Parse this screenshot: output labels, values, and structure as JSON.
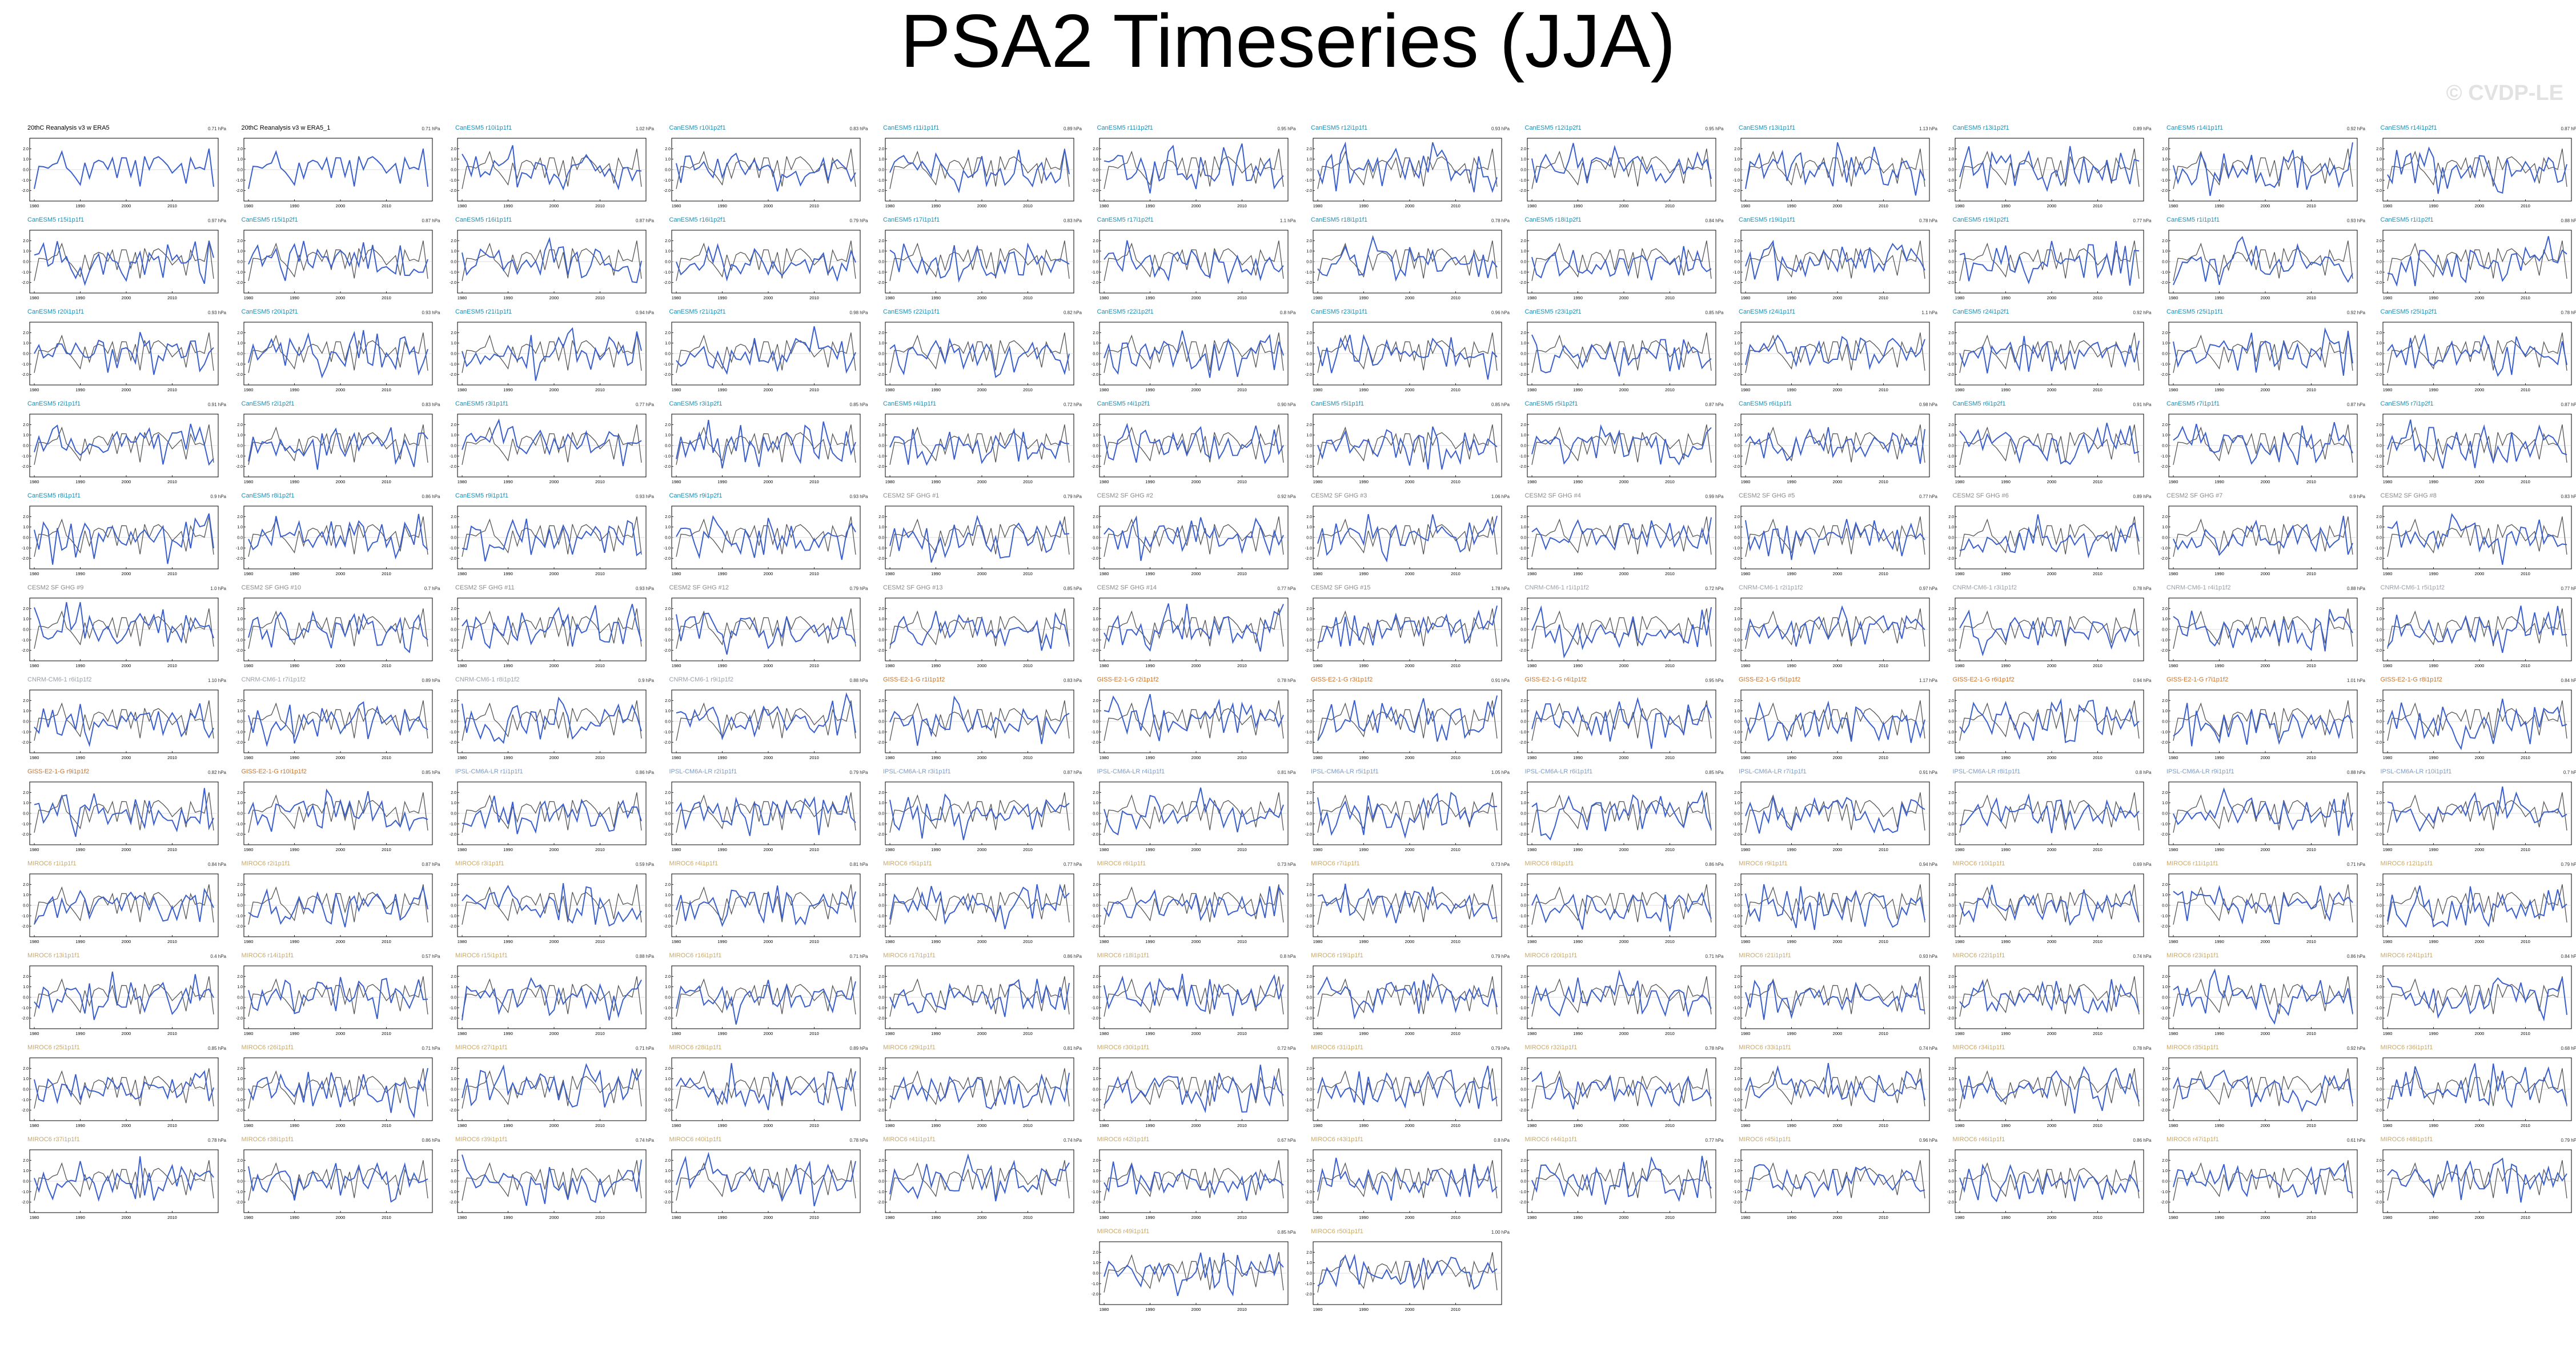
{
  "title": "PSA2 Timeseries (JJA)",
  "watermark": "© CVDP-LE",
  "colors": {
    "observed_line": "#555555",
    "model_line": "#3a5fcd",
    "title_obs": "#000000",
    "title_canesm5": "#1b8fb5",
    "title_cesm2": "#8a8a8a",
    "title_cnrm": "#9aa0a8",
    "title_giss": "#c9722a",
    "title_ipsl": "#7b9bc9",
    "title_miroc": "#c8a86a"
  },
  "chart_data": {
    "type": "line",
    "layout": "small-multiples",
    "xlim": [
      1979,
      2020
    ],
    "xticks": [
      "1980",
      "1990",
      "2000",
      "2010"
    ],
    "ylim": [
      -3,
      3
    ],
    "yticks": [
      "2.0",
      "1.0",
      "0.0",
      "-1.0",
      "-2.0"
    ],
    "grid": false,
    "legend": "none",
    "panels": [
      {
        "title": "20thC Reanalysis v3 w ERA5",
        "stat": "0.71 hPa",
        "color": "title_obs"
      },
      {
        "title": "20thC Reanalysis v3 w ERA5_1",
        "stat": "0.71 hPa",
        "color": "title_obs"
      },
      {
        "title": "CanESM5 r10i1p1f1",
        "stat": "1.02 hPa",
        "color": "title_canesm5"
      },
      {
        "title": "CanESM5 r10i1p2f1",
        "stat": "0.83 hPa",
        "color": "title_canesm5"
      },
      {
        "title": "CanESM5 r11i1p1f1",
        "stat": "0.89 hPa",
        "color": "title_canesm5"
      },
      {
        "title": "CanESM5 r11i1p2f1",
        "stat": "0.95 hPa",
        "color": "title_canesm5"
      },
      {
        "title": "CanESM5 r12i1p1f1",
        "stat": "0.93 hPa",
        "color": "title_canesm5"
      },
      {
        "title": "CanESM5 r12i1p2f1",
        "stat": "0.95 hPa",
        "color": "title_canesm5"
      },
      {
        "title": "CanESM5 r13i1p1f1",
        "stat": "1.13 hPa",
        "color": "title_canesm5"
      },
      {
        "title": "CanESM5 r13i1p2f1",
        "stat": "0.89 hPa",
        "color": "title_canesm5"
      },
      {
        "title": "CanESM5 r14i1p1f1",
        "stat": "0.92 hPa",
        "color": "title_canesm5"
      },
      {
        "title": "CanESM5 r14i1p2f1",
        "stat": "0.87 hPa",
        "color": "title_canesm5"
      },
      {
        "title": "CanESM5 r15i1p1f1",
        "stat": "0.97 hPa",
        "color": "title_canesm5"
      },
      {
        "title": "CanESM5 r15i1p2f1",
        "stat": "0.87 hPa",
        "color": "title_canesm5"
      },
      {
        "title": "CanESM5 r16i1p1f1",
        "stat": "0.87 hPa",
        "color": "title_canesm5"
      },
      {
        "title": "CanESM5 r16i1p2f1",
        "stat": "0.79 hPa",
        "color": "title_canesm5"
      },
      {
        "title": "CanESM5 r17i1p1f1",
        "stat": "0.83 hPa",
        "color": "title_canesm5"
      },
      {
        "title": "CanESM5 r17i1p2f1",
        "stat": "1.1 hPa",
        "color": "title_canesm5"
      },
      {
        "title": "CanESM5 r18i1p1f1",
        "stat": "0.78 hPa",
        "color": "title_canesm5"
      },
      {
        "title": "CanESM5 r18i1p2f1",
        "stat": "0.84 hPa",
        "color": "title_canesm5"
      },
      {
        "title": "CanESM5 r19i1p1f1",
        "stat": "0.78 hPa",
        "color": "title_canesm5"
      },
      {
        "title": "CanESM5 r19i1p2f1",
        "stat": "0.77 hPa",
        "color": "title_canesm5"
      },
      {
        "title": "CanESM5 r1i1p1f1",
        "stat": "0.93 hPa",
        "color": "title_canesm5"
      },
      {
        "title": "CanESM5 r1i1p2f1",
        "stat": "0.88 hPa",
        "color": "title_canesm5"
      },
      {
        "title": "CanESM5 r20i1p1f1",
        "stat": "0.93 hPa",
        "color": "title_canesm5"
      },
      {
        "title": "CanESM5 r20i1p2f1",
        "stat": "0.93 hPa",
        "color": "title_canesm5"
      },
      {
        "title": "CanESM5 r21i1p1f1",
        "stat": "0.94 hPa",
        "color": "title_canesm5"
      },
      {
        "title": "CanESM5 r21i1p2f1",
        "stat": "0.98 hPa",
        "color": "title_canesm5"
      },
      {
        "title": "CanESM5 r22i1p1f1",
        "stat": "0.82 hPa",
        "color": "title_canesm5"
      },
      {
        "title": "CanESM5 r22i1p2f1",
        "stat": "0.8 hPa",
        "color": "title_canesm5"
      },
      {
        "title": "CanESM5 r23i1p1f1",
        "stat": "0.96 hPa",
        "color": "title_canesm5"
      },
      {
        "title": "CanESM5 r23i1p2f1",
        "stat": "0.85 hPa",
        "color": "title_canesm5"
      },
      {
        "title": "CanESM5 r24i1p1f1",
        "stat": "1.1 hPa",
        "color": "title_canesm5"
      },
      {
        "title": "CanESM5 r24i1p2f1",
        "stat": "0.92 hPa",
        "color": "title_canesm5"
      },
      {
        "title": "CanESM5 r25i1p1f1",
        "stat": "0.92 hPa",
        "color": "title_canesm5"
      },
      {
        "title": "CanESM5 r25i1p2f1",
        "stat": "0.78 hPa",
        "color": "title_canesm5"
      },
      {
        "title": "CanESM5 r2i1p1f1",
        "stat": "0.91 hPa",
        "color": "title_canesm5"
      },
      {
        "title": "CanESM5 r2i1p2f1",
        "stat": "0.83 hPa",
        "color": "title_canesm5"
      },
      {
        "title": "CanESM5 r3i1p1f1",
        "stat": "0.77 hPa",
        "color": "title_canesm5"
      },
      {
        "title": "CanESM5 r3i1p2f1",
        "stat": "0.85 hPa",
        "color": "title_canesm5"
      },
      {
        "title": "CanESM5 r4i1p1f1",
        "stat": "0.72 hPa",
        "color": "title_canesm5"
      },
      {
        "title": "CanESM5 r4i1p2f1",
        "stat": "0.90 hPa",
        "color": "title_canesm5"
      },
      {
        "title": "CanESM5 r5i1p1f1",
        "stat": "0.85 hPa",
        "color": "title_canesm5"
      },
      {
        "title": "CanESM5 r5i1p2f1",
        "stat": "0.87 hPa",
        "color": "title_canesm5"
      },
      {
        "title": "CanESM5 r6i1p1f1",
        "stat": "0.98 hPa",
        "color": "title_canesm5"
      },
      {
        "title": "CanESM5 r6i1p2f1",
        "stat": "0.91 hPa",
        "color": "title_canesm5"
      },
      {
        "title": "CanESM5 r7i1p1f1",
        "stat": "0.87 hPa",
        "color": "title_canesm5"
      },
      {
        "title": "CanESM5 r7i1p2f1",
        "stat": "0.87 hPa",
        "color": "title_canesm5"
      },
      {
        "title": "CanESM5 r8i1p1f1",
        "stat": "0.9 hPa",
        "color": "title_canesm5"
      },
      {
        "title": "CanESM5 r8i1p2f1",
        "stat": "0.86 hPa",
        "color": "title_canesm5"
      },
      {
        "title": "CanESM5 r9i1p1f1",
        "stat": "0.93 hPa",
        "color": "title_canesm5"
      },
      {
        "title": "CanESM5 r9i1p2f1",
        "stat": "0.93 hPa",
        "color": "title_canesm5"
      },
      {
        "title": "CESM2 SF GHG #1",
        "stat": "0.79 hPa",
        "color": "title_cesm2"
      },
      {
        "title": "CESM2 SF GHG #2",
        "stat": "0.92 hPa",
        "color": "title_cesm2"
      },
      {
        "title": "CESM2 SF GHG #3",
        "stat": "1.06 hPa",
        "color": "title_cesm2"
      },
      {
        "title": "CESM2 SF GHG #4",
        "stat": "0.99 hPa",
        "color": "title_cesm2"
      },
      {
        "title": "CESM2 SF GHG #5",
        "stat": "0.77 hPa",
        "color": "title_cesm2"
      },
      {
        "title": "CESM2 SF GHG #6",
        "stat": "0.89 hPa",
        "color": "title_cesm2"
      },
      {
        "title": "CESM2 SF GHG #7",
        "stat": "0.9 hPa",
        "color": "title_cesm2"
      },
      {
        "title": "CESM2 SF GHG #8",
        "stat": "0.83 hPa",
        "color": "title_cesm2"
      },
      {
        "title": "CESM2 SF GHG #9",
        "stat": "1.0 hPa",
        "color": "title_cesm2"
      },
      {
        "title": "CESM2 SF GHG #10",
        "stat": "0.7 hPa",
        "color": "title_cesm2"
      },
      {
        "title": "CESM2 SF GHG #11",
        "stat": "0.93 hPa",
        "color": "title_cesm2"
      },
      {
        "title": "CESM2 SF GHG #12",
        "stat": "0.79 hPa",
        "color": "title_cesm2"
      },
      {
        "title": "CESM2 SF GHG #13",
        "stat": "0.85 hPa",
        "color": "title_cesm2"
      },
      {
        "title": "CESM2 SF GHG #14",
        "stat": "0.77 hPa",
        "color": "title_cesm2"
      },
      {
        "title": "CESM2 SF GHG #15",
        "stat": "1.78 hPa",
        "color": "title_cesm2"
      },
      {
        "title": "CNRM-CM6-1 r1i1p1f2",
        "stat": "0.72 hPa",
        "color": "title_cnrm"
      },
      {
        "title": "CNRM-CM6-1 r2i1p1f2",
        "stat": "0.97 hPa",
        "color": "title_cnrm"
      },
      {
        "title": "CNRM-CM6-1 r3i1p1f2",
        "stat": "0.78 hPa",
        "color": "title_cnrm"
      },
      {
        "title": "CNRM-CM6-1 r4i1p1f2",
        "stat": "0.88 hPa",
        "color": "title_cnrm"
      },
      {
        "title": "CNRM-CM6-1 r5i1p1f2",
        "stat": "0.77 hPa",
        "color": "title_cnrm"
      },
      {
        "title": "CNRM-CM6-1 r6i1p1f2",
        "stat": "1.10 hPa",
        "color": "title_cnrm"
      },
      {
        "title": "CNRM-CM6-1 r7i1p1f2",
        "stat": "0.89 hPa",
        "color": "title_cnrm"
      },
      {
        "title": "CNRM-CM6-1 r8i1p1f2",
        "stat": "0.9 hPa",
        "color": "title_cnrm"
      },
      {
        "title": "CNRM-CM6-1 r9i1p1f2",
        "stat": "0.88 hPa",
        "color": "title_cnrm"
      },
      {
        "title": "GISS-E2-1-G r1i1p1f2",
        "stat": "0.83 hPa",
        "color": "title_giss"
      },
      {
        "title": "GISS-E2-1-G r2i1p1f2",
        "stat": "0.78 hPa",
        "color": "title_giss"
      },
      {
        "title": "GISS-E2-1-G r3i1p1f2",
        "stat": "0.91 hPa",
        "color": "title_giss"
      },
      {
        "title": "GISS-E2-1-G r4i1p1f2",
        "stat": "0.95 hPa",
        "color": "title_giss"
      },
      {
        "title": "GISS-E2-1-G r5i1p1f2",
        "stat": "1.17 hPa",
        "color": "title_giss"
      },
      {
        "title": "GISS-E2-1-G r6i1p1f2",
        "stat": "0.94 hPa",
        "color": "title_giss"
      },
      {
        "title": "GISS-E2-1-G r7i1p1f2",
        "stat": "1.01 hPa",
        "color": "title_giss"
      },
      {
        "title": "GISS-E2-1-G r8i1p1f2",
        "stat": "0.84 hPa",
        "color": "title_giss"
      },
      {
        "title": "GISS-E2-1-G r9i1p1f2",
        "stat": "0.82 hPa",
        "color": "title_giss"
      },
      {
        "title": "GISS-E2-1-G r10i1p1f2",
        "stat": "0.85 hPa",
        "color": "title_giss"
      },
      {
        "title": "IPSL-CM6A-LR r1i1p1f1",
        "stat": "0.86 hPa",
        "color": "title_ipsl"
      },
      {
        "title": "IPSL-CM6A-LR r2i1p1f1",
        "stat": "0.79 hPa",
        "color": "title_ipsl"
      },
      {
        "title": "IPSL-CM6A-LR r3i1p1f1",
        "stat": "0.87 hPa",
        "color": "title_ipsl"
      },
      {
        "title": "IPSL-CM6A-LR r4i1p1f1",
        "stat": "0.81 hPa",
        "color": "title_ipsl"
      },
      {
        "title": "IPSL-CM6A-LR r5i1p1f1",
        "stat": "1.05 hPa",
        "color": "title_ipsl"
      },
      {
        "title": "IPSL-CM6A-LR r6i1p1f1",
        "stat": "0.85 hPa",
        "color": "title_ipsl"
      },
      {
        "title": "IPSL-CM6A-LR r7i1p1f1",
        "stat": "0.91 hPa",
        "color": "title_ipsl"
      },
      {
        "title": "IPSL-CM6A-LR r8i1p1f1",
        "stat": "0.8 hPa",
        "color": "title_ipsl"
      },
      {
        "title": "IPSL-CM6A-LR r9i1p1f1",
        "stat": "0.88 hPa",
        "color": "title_ipsl"
      },
      {
        "title": "IPSL-CM6A-LR r10i1p1f1",
        "stat": "0.7 hPa",
        "color": "title_ipsl"
      },
      {
        "title": "MIROC6 r1i1p1f1",
        "stat": "0.84 hPa",
        "color": "title_miroc"
      },
      {
        "title": "MIROC6 r2i1p1f1",
        "stat": "0.87 hPa",
        "color": "title_miroc"
      },
      {
        "title": "MIROC6 r3i1p1f1",
        "stat": "0.59 hPa",
        "color": "title_miroc"
      },
      {
        "title": "MIROC6 r4i1p1f1",
        "stat": "0.81 hPa",
        "color": "title_miroc"
      },
      {
        "title": "MIROC6 r5i1p1f1",
        "stat": "0.77 hPa",
        "color": "title_miroc"
      },
      {
        "title": "MIROC6 r6i1p1f1",
        "stat": "0.73 hPa",
        "color": "title_miroc"
      },
      {
        "title": "MIROC6 r7i1p1f1",
        "stat": "0.73 hPa",
        "color": "title_miroc"
      },
      {
        "title": "MIROC6 r8i1p1f1",
        "stat": "0.86 hPa",
        "color": "title_miroc"
      },
      {
        "title": "MIROC6 r9i1p1f1",
        "stat": "0.94 hPa",
        "color": "title_miroc"
      },
      {
        "title": "MIROC6 r10i1p1f1",
        "stat": "0.69 hPa",
        "color": "title_miroc"
      },
      {
        "title": "MIROC6 r11i1p1f1",
        "stat": "0.71 hPa",
        "color": "title_miroc"
      },
      {
        "title": "MIROC6 r12i1p1f1",
        "stat": "0.79 hPa",
        "color": "title_miroc"
      },
      {
        "title": "MIROC6 r13i1p1f1",
        "stat": "0.4 hPa",
        "color": "title_miroc"
      },
      {
        "title": "MIROC6 r14i1p1f1",
        "stat": "0.57 hPa",
        "color": "title_miroc"
      },
      {
        "title": "MIROC6 r15i1p1f1",
        "stat": "0.88 hPa",
        "color": "title_miroc"
      },
      {
        "title": "MIROC6 r16i1p1f1",
        "stat": "0.71 hPa",
        "color": "title_miroc"
      },
      {
        "title": "MIROC6 r17i1p1f1",
        "stat": "0.86 hPa",
        "color": "title_miroc"
      },
      {
        "title": "MIROC6 r18i1p1f1",
        "stat": "0.8 hPa",
        "color": "title_miroc"
      },
      {
        "title": "MIROC6 r19i1p1f1",
        "stat": "0.79 hPa",
        "color": "title_miroc"
      },
      {
        "title": "MIROC6 r20i1p1f1",
        "stat": "0.71 hPa",
        "color": "title_miroc"
      },
      {
        "title": "MIROC6 r21i1p1f1",
        "stat": "0.93 hPa",
        "color": "title_miroc"
      },
      {
        "title": "MIROC6 r22i1p1f1",
        "stat": "0.74 hPa",
        "color": "title_miroc"
      },
      {
        "title": "MIROC6 r23i1p1f1",
        "stat": "0.86 hPa",
        "color": "title_miroc"
      },
      {
        "title": "MIROC6 r24i1p1f1",
        "stat": "0.84 hPa",
        "color": "title_miroc"
      },
      {
        "title": "MIROC6 r25i1p1f1",
        "stat": "0.85 hPa",
        "color": "title_miroc"
      },
      {
        "title": "MIROC6 r26i1p1f1",
        "stat": "0.71 hPa",
        "color": "title_miroc"
      },
      {
        "title": "MIROC6 r27i1p1f1",
        "stat": "0.71 hPa",
        "color": "title_miroc"
      },
      {
        "title": "MIROC6 r28i1p1f1",
        "stat": "0.89 hPa",
        "color": "title_miroc"
      },
      {
        "title": "MIROC6 r29i1p1f1",
        "stat": "0.81 hPa",
        "color": "title_miroc"
      },
      {
        "title": "MIROC6 r30i1p1f1",
        "stat": "0.72 hPa",
        "color": "title_miroc"
      },
      {
        "title": "MIROC6 r31i1p1f1",
        "stat": "0.79 hPa",
        "color": "title_miroc"
      },
      {
        "title": "MIROC6 r32i1p1f1",
        "stat": "0.78 hPa",
        "color": "title_miroc"
      },
      {
        "title": "MIROC6 r33i1p1f1",
        "stat": "0.74 hPa",
        "color": "title_miroc"
      },
      {
        "title": "MIROC6 r34i1p1f1",
        "stat": "0.78 hPa",
        "color": "title_miroc"
      },
      {
        "title": "MIROC6 r35i1p1f1",
        "stat": "0.92 hPa",
        "color": "title_miroc"
      },
      {
        "title": "MIROC6 r36i1p1f1",
        "stat": "0.68 hPa",
        "color": "title_miroc"
      },
      {
        "title": "MIROC6 r37i1p1f1",
        "stat": "0.78 hPa",
        "color": "title_miroc"
      },
      {
        "title": "MIROC6 r38i1p1f1",
        "stat": "0.86 hPa",
        "color": "title_miroc"
      },
      {
        "title": "MIROC6 r39i1p1f1",
        "stat": "0.74 hPa",
        "color": "title_miroc"
      },
      {
        "title": "MIROC6 r40i1p1f1",
        "stat": "0.78 hPa",
        "color": "title_miroc"
      },
      {
        "title": "MIROC6 r41i1p1f1",
        "stat": "0.74 hPa",
        "color": "title_miroc"
      },
      {
        "title": "MIROC6 r42i1p1f1",
        "stat": "0.67 hPa",
        "color": "title_miroc"
      },
      {
        "title": "MIROC6 r43i1p1f1",
        "stat": "0.8 hPa",
        "color": "title_miroc"
      },
      {
        "title": "MIROC6 r44i1p1f1",
        "stat": "0.77 hPa",
        "color": "title_miroc"
      },
      {
        "title": "MIROC6 r45i1p1f1",
        "stat": "0.96 hPa",
        "color": "title_miroc"
      },
      {
        "title": "MIROC6 r46i1p1f1",
        "stat": "0.86 hPa",
        "color": "title_miroc"
      },
      {
        "title": "MIROC6 r47i1p1f1",
        "stat": "0.61 hPa",
        "color": "title_miroc"
      },
      {
        "title": "MIROC6 r48i1p1f1",
        "stat": "0.79 hPa",
        "color": "title_miroc"
      },
      {
        "title": "MIROC6 r49i1p1f1",
        "stat": "0.85 hPa",
        "color": "title_miroc"
      },
      {
        "title": "MIROC6 r50i1p1f1",
        "stat": "1.00 hPa",
        "color": "title_miroc"
      }
    ]
  }
}
